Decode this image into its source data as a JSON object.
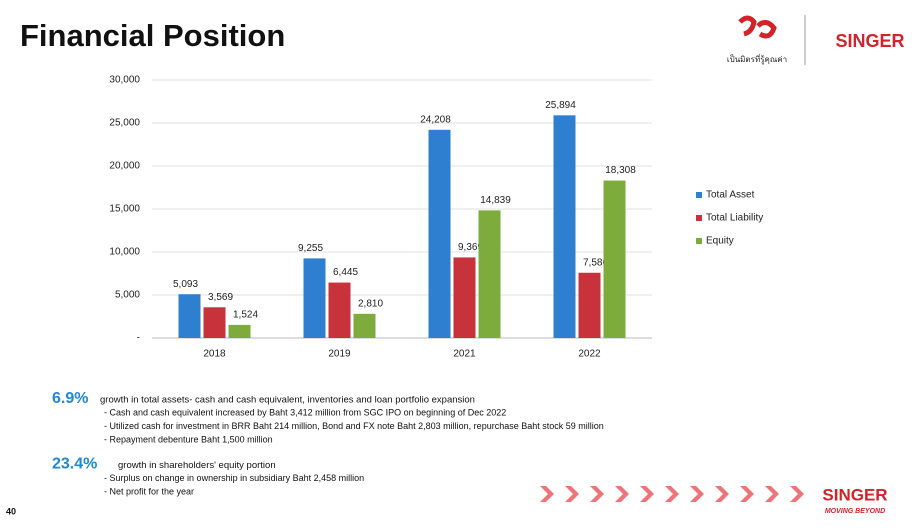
{
  "slide": {
    "title": "Financial Position",
    "logo": {
      "tagline": "เป็นมิตรที่รู้คุณค่า",
      "brand": "SINGER"
    },
    "highlights": [
      {
        "figure": "6.9%",
        "text": "growth in total assets- cash and cash equivalent, inventories and loan portfolio expansion",
        "points": [
          "- Cash and cash equivalent increased by Baht 3,412 million from SGC IPO on beginning of Dec 2022",
          "- Utilized cash for investment in BRR Baht 214 million, Bond and FX note Baht 2,803 million, repurchase Baht stock 59 million",
          "- Repayment debenture Baht 1,500 million"
        ]
      },
      {
        "figure": "23.4%",
        "text": "growth in shareholders' equity portion",
        "points": [
          "- Surplus on change in ownership in subsidiary Baht 2,458 million",
          "- Net profit for the year"
        ]
      }
    ],
    "footer": {
      "brand": "SINGER",
      "tagline": "MOVING BEYOND"
    },
    "page": "40"
  },
  "chart_data": {
    "type": "bar",
    "categories": [
      "2018",
      "2019",
      "2021",
      "2022"
    ],
    "series": [
      {
        "name": "Total Asset",
        "color": "#2e7fd0",
        "values": [
          5093,
          9255,
          24208,
          25894
        ],
        "value_labels": [
          "5,093",
          "9,255",
          "24,208",
          "25,894"
        ]
      },
      {
        "name": "Total Liability",
        "color": "#c8323a",
        "values": [
          3569,
          6445,
          9369,
          7586
        ],
        "value_labels": [
          "3,569",
          "6,445",
          "9,369",
          "7,586"
        ]
      },
      {
        "name": "Equity",
        "color": "#7dac3c",
        "values": [
          1524,
          2810,
          14839,
          18308
        ],
        "value_labels": [
          "1,524",
          "2,810",
          "14,839",
          "18,308"
        ]
      }
    ],
    "ylim": [
      0,
      30000
    ],
    "yticks": [
      {
        "value": 0,
        "label": "-"
      },
      {
        "value": 5000,
        "label": "5,000"
      },
      {
        "value": 10000,
        "label": "10,000"
      },
      {
        "value": 15000,
        "label": "15,000"
      },
      {
        "value": 20000,
        "label": "20,000"
      },
      {
        "value": 25000,
        "label": "25,000"
      },
      {
        "value": 30000,
        "label": "30,000"
      }
    ],
    "grid": true,
    "legend": "right"
  }
}
